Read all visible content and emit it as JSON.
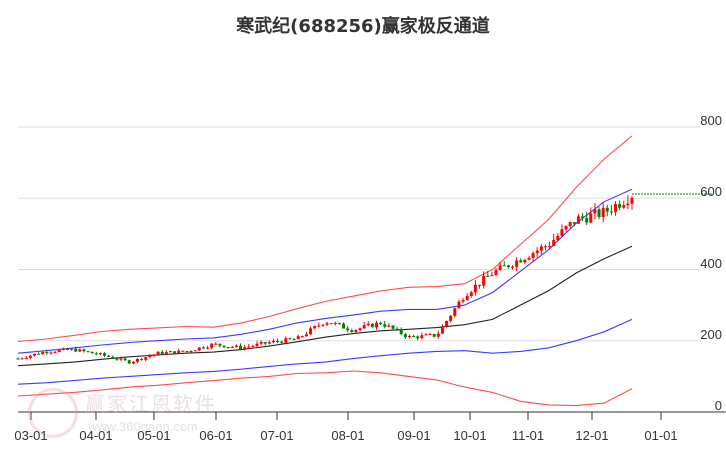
{
  "title": "寒武纪(688256)赢家极反通道",
  "watermark": {
    "text": "赢家江恩软件",
    "url": "www.360gann.com",
    "seal": "江赢恩家"
  },
  "colors": {
    "up": "#ff0000",
    "down": "#008000",
    "outer_band": "#ff4d4d",
    "inner_band": "#3b3bff",
    "mid_line": "#222222",
    "grid": "#dddddd",
    "last_price_line": "#008000"
  },
  "chart_data": {
    "type": "line",
    "title": "寒武纪(688256)赢家极反通道",
    "xlabel": "",
    "ylabel": "",
    "ylim": [
      0,
      800
    ],
    "yticks": [
      0,
      200,
      400,
      600,
      800
    ],
    "xticks": [
      "03-01",
      "04-01",
      "05-01",
      "06-01",
      "07-01",
      "08-01",
      "09-01",
      "10-01",
      "11-01",
      "12-01",
      "01-01"
    ],
    "grid": true,
    "last_price": 612,
    "x": [
      "02-15",
      "03-01",
      "03-15",
      "04-01",
      "04-15",
      "05-01",
      "05-15",
      "06-01",
      "06-15",
      "07-01",
      "07-15",
      "08-01",
      "08-15",
      "09-01",
      "09-15",
      "10-01",
      "10-08",
      "10-15",
      "11-01",
      "11-15",
      "12-01",
      "12-10",
      "12-20"
    ],
    "series": [
      {
        "name": "upper_outer",
        "color": "#ff4d4d",
        "values": [
          198,
          205,
          215,
          226,
          232,
          236,
          240,
          238,
          250,
          268,
          290,
          310,
          325,
          340,
          350,
          352,
          360,
          400,
          470,
          540,
          630,
          710,
          775
        ]
      },
      {
        "name": "upper_inner",
        "color": "#3b3bff",
        "values": [
          165,
          172,
          180,
          188,
          195,
          200,
          205,
          208,
          218,
          232,
          250,
          262,
          272,
          283,
          288,
          288,
          300,
          335,
          395,
          455,
          530,
          590,
          625
        ]
      },
      {
        "name": "middle",
        "color": "#222222",
        "values": [
          130,
          135,
          140,
          148,
          155,
          160,
          165,
          168,
          175,
          185,
          197,
          210,
          220,
          228,
          232,
          237,
          245,
          260,
          300,
          340,
          390,
          430,
          465
        ]
      },
      {
        "name": "lower_inner",
        "color": "#3b3bff",
        "values": [
          78,
          82,
          88,
          95,
          100,
          105,
          110,
          114,
          120,
          128,
          135,
          140,
          150,
          158,
          165,
          170,
          172,
          165,
          170,
          180,
          200,
          225,
          260
        ]
      },
      {
        "name": "lower_outer",
        "color": "#ff4d4d",
        "values": [
          45,
          50,
          55,
          62,
          70,
          75,
          82,
          88,
          95,
          100,
          108,
          110,
          115,
          110,
          100,
          90,
          70,
          55,
          30,
          20,
          18,
          25,
          65
        ]
      },
      {
        "name": "close",
        "color": "#ff0000",
        "values": [
          150,
          170,
          175,
          160,
          140,
          165,
          170,
          190,
          180,
          195,
          205,
          255,
          230,
          250,
          210,
          215,
          330,
          390,
          430,
          470,
          540,
          560,
          610
        ]
      }
    ]
  },
  "y_axis": {
    "labels": [
      "800",
      "600",
      "400",
      "200",
      "0"
    ]
  },
  "x_axis": {
    "labels": [
      "03-01",
      "04-01",
      "05-01",
      "06-01",
      "07-01",
      "08-01",
      "09-01",
      "10-01",
      "11-01",
      "12-01",
      "01-01"
    ]
  }
}
